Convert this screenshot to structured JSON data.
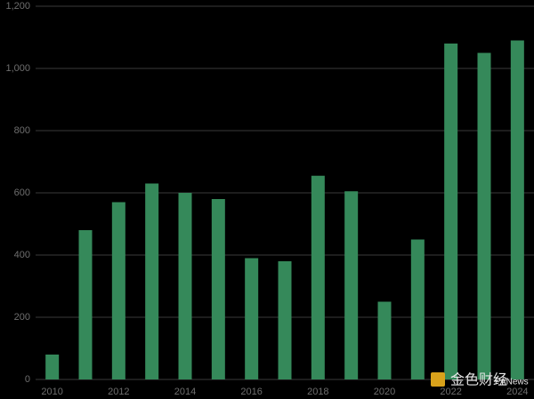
{
  "chart_data": {
    "type": "bar",
    "categories": [
      "2010",
      null,
      "2012",
      null,
      "2014",
      null,
      "2016",
      null,
      "2018",
      null,
      "2020",
      null,
      "2022",
      null,
      "2024"
    ],
    "values": [
      80,
      480,
      570,
      630,
      600,
      580,
      390,
      380,
      655,
      605,
      250,
      450,
      1080,
      1050,
      1090
    ],
    "color": "#35895a",
    "ylim": [
      0,
      1200
    ],
    "yticks": [
      0,
      200,
      400,
      600,
      800,
      {
        "value": 1000,
        "label": "1,000"
      },
      {
        "value": 1200,
        "label": "1,200"
      }
    ],
    "grid": true,
    "watermark": [
      "金色财经",
      "PANews"
    ]
  }
}
